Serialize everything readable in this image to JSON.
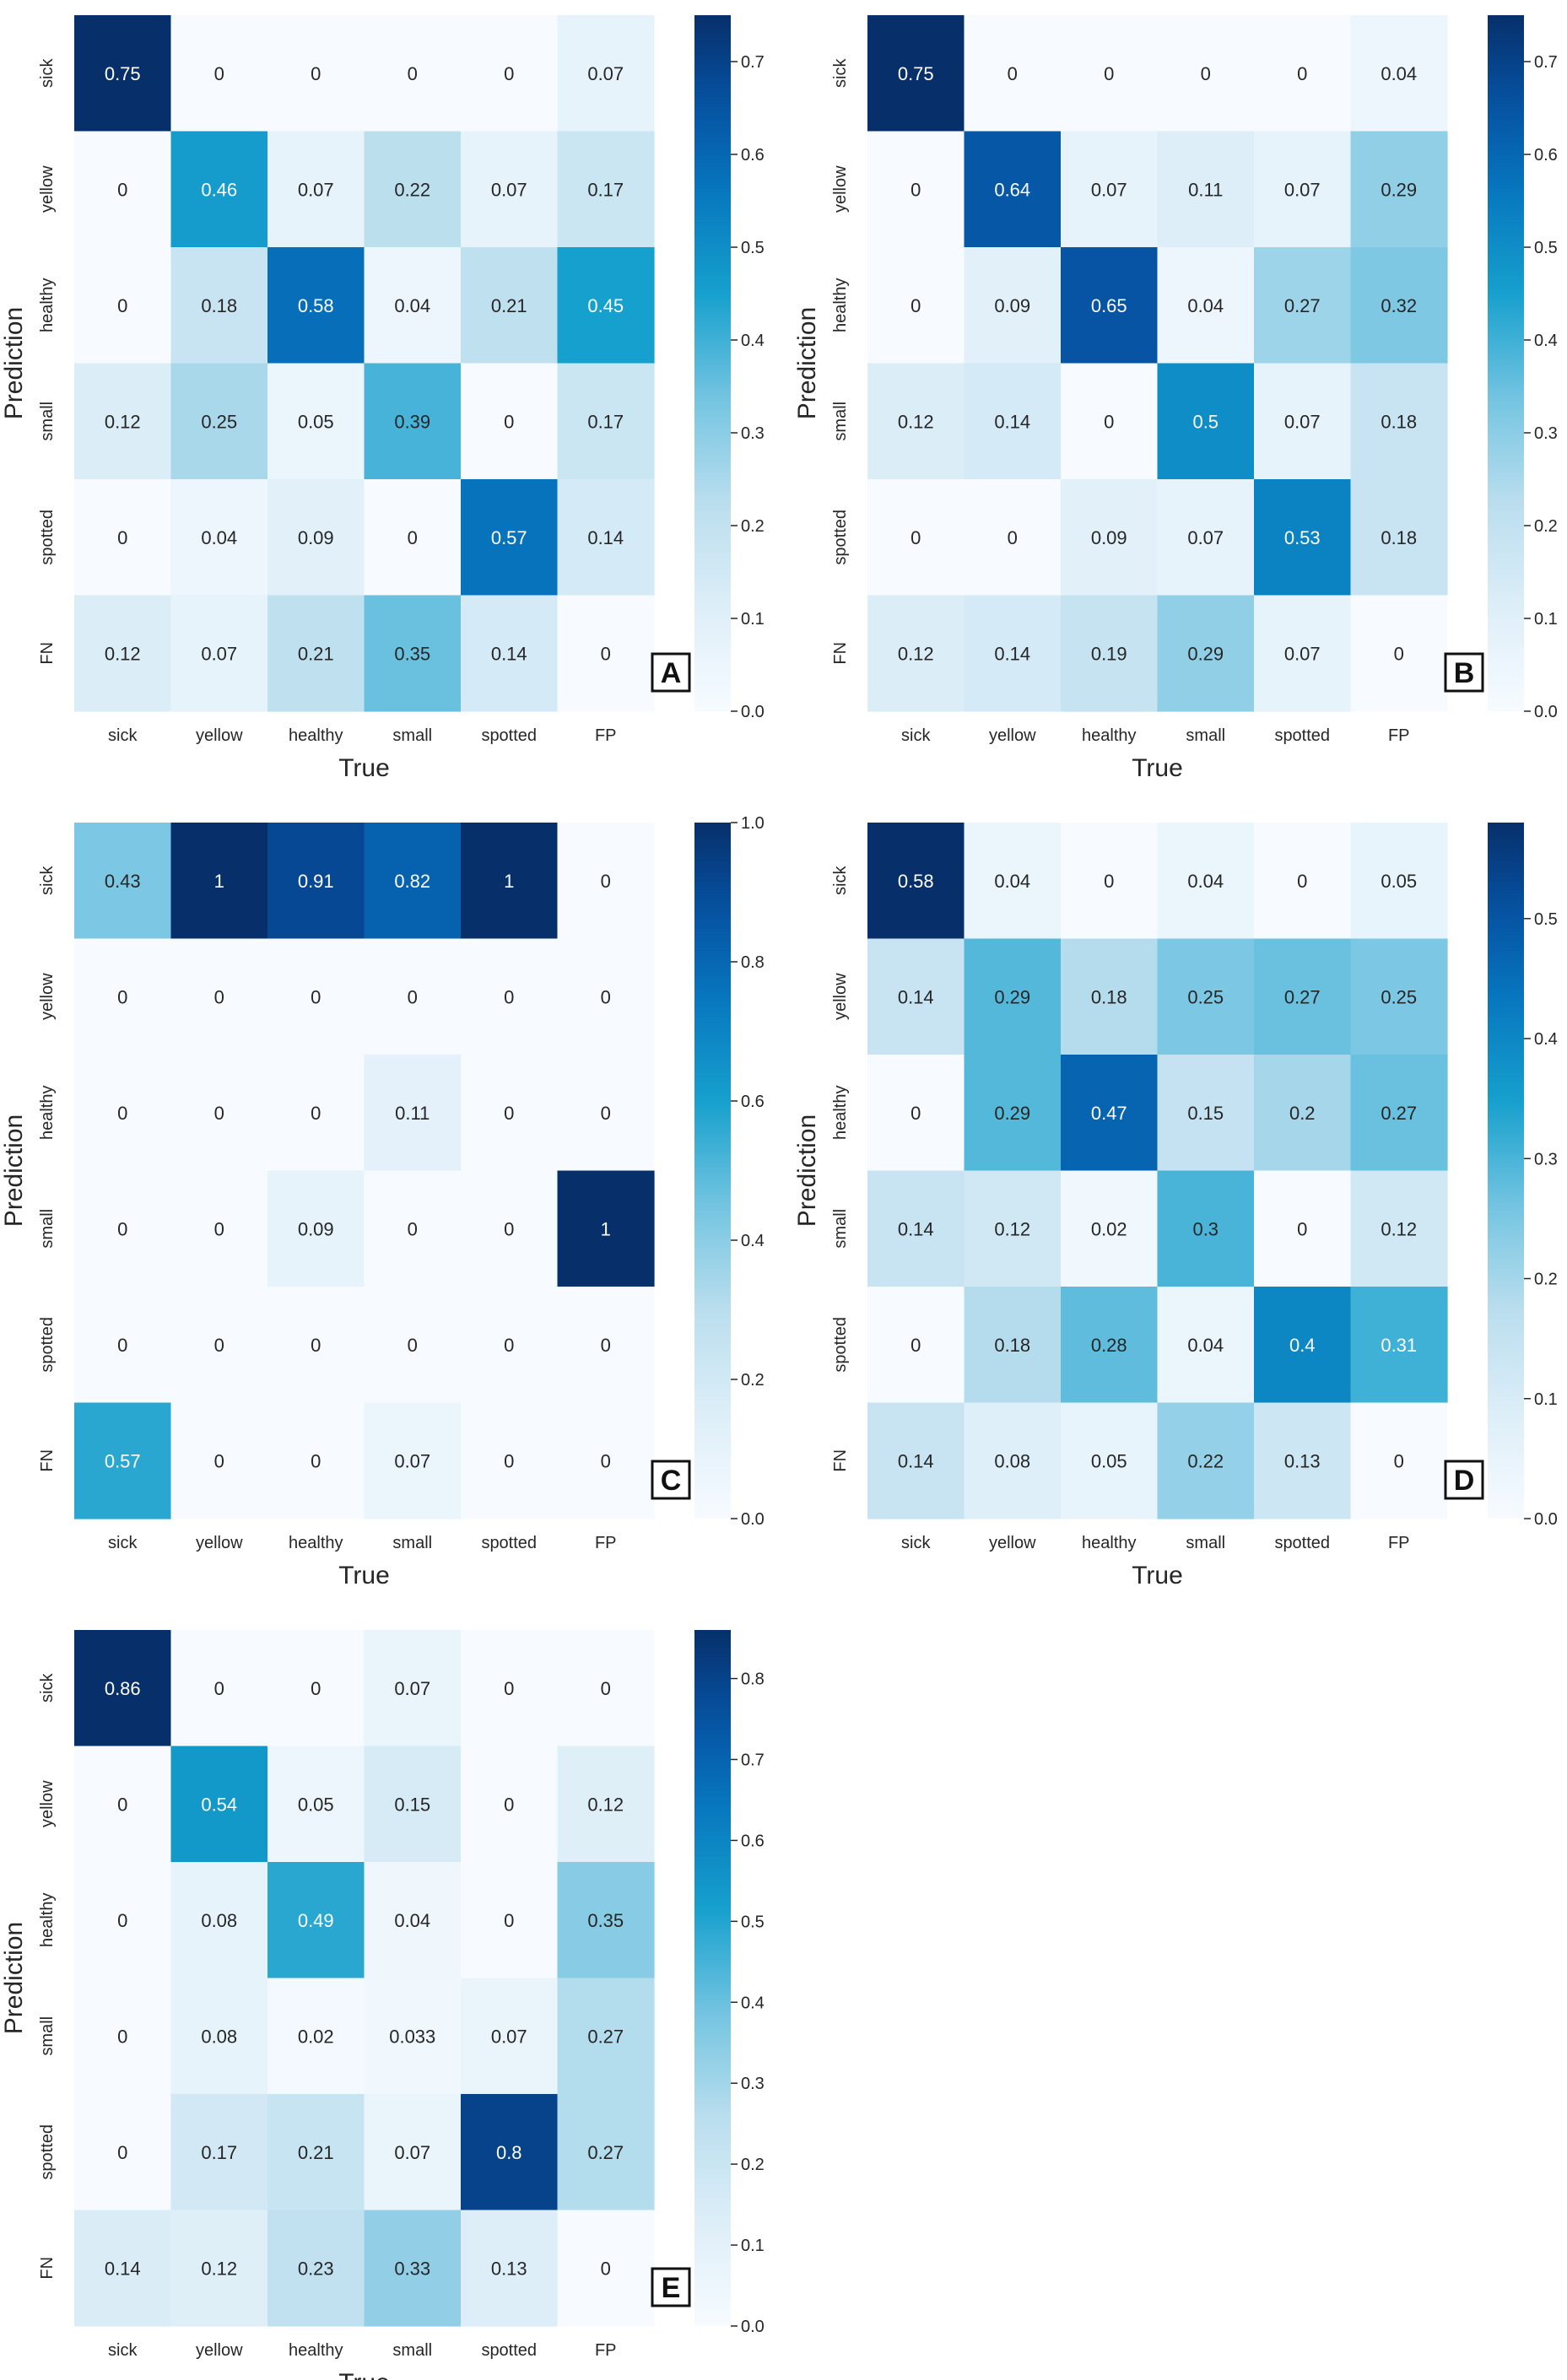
{
  "figure": {
    "xlabel": "True",
    "ylabel": "Prediction",
    "colormap": "Blues",
    "colors": {
      "low": "#f7fbff",
      "mid": "#1a9bcb",
      "high": "#08306b",
      "text_dark": "#262626",
      "text_light": "#ffffff"
    }
  },
  "chart_data": [
    {
      "type": "heatmap",
      "panel": "A",
      "categories_x": [
        "sick",
        "yellow",
        "healthy",
        "small",
        "spotted",
        "FP"
      ],
      "categories_y": [
        "sick",
        "yellow",
        "healthy",
        "small",
        "spotted",
        "FN"
      ],
      "xlabel": "True",
      "ylabel": "Prediction",
      "vmin": 0,
      "vmax": 0.75,
      "colorbar_ticks": [
        0.0,
        0.1,
        0.2,
        0.3,
        0.4,
        0.5,
        0.6,
        0.7
      ],
      "colorbar_tick_labels": [
        "0.0",
        "0.1",
        "0.2",
        "0.3",
        "0.4",
        "0.5",
        "0.6",
        "0.7"
      ],
      "cells": [
        [
          "0.75",
          "0",
          "0",
          "0",
          "0",
          "0.07"
        ],
        [
          "0",
          "0.46",
          "0.07",
          "0.22",
          "0.07",
          "0.17"
        ],
        [
          "0",
          "0.18",
          "0.58",
          "0.04",
          "0.21",
          "0.45"
        ],
        [
          "0.12",
          "0.25",
          "0.05",
          "0.39",
          "0",
          "0.17"
        ],
        [
          "0",
          "0.04",
          "0.09",
          "0",
          "0.57",
          "0.14"
        ],
        [
          "0.12",
          "0.07",
          "0.21",
          "0.35",
          "0.14",
          "0"
        ]
      ]
    },
    {
      "type": "heatmap",
      "panel": "B",
      "categories_x": [
        "sick",
        "yellow",
        "healthy",
        "small",
        "spotted",
        "FP"
      ],
      "categories_y": [
        "sick",
        "yellow",
        "healthy",
        "small",
        "spotted",
        "FN"
      ],
      "xlabel": "True",
      "ylabel": "Prediction",
      "vmin": 0,
      "vmax": 0.75,
      "colorbar_ticks": [
        0.0,
        0.1,
        0.2,
        0.3,
        0.4,
        0.5,
        0.6,
        0.7
      ],
      "colorbar_tick_labels": [
        "0.0",
        "0.1",
        "0.2",
        "0.3",
        "0.4",
        "0.5",
        "0.6",
        "0.7"
      ],
      "cells": [
        [
          "0.75",
          "0",
          "0",
          "0",
          "0",
          "0.04"
        ],
        [
          "0",
          "0.64",
          "0.07",
          "0.11",
          "0.07",
          "0.29"
        ],
        [
          "0",
          "0.09",
          "0.65",
          "0.04",
          "0.27",
          "0.32"
        ],
        [
          "0.12",
          "0.14",
          "0",
          "0.5",
          "0.07",
          "0.18"
        ],
        [
          "0",
          "0",
          "0.09",
          "0.07",
          "0.53",
          "0.18"
        ],
        [
          "0.12",
          "0.14",
          "0.19",
          "0.29",
          "0.07",
          "0"
        ]
      ]
    },
    {
      "type": "heatmap",
      "panel": "C",
      "categories_x": [
        "sick",
        "yellow",
        "healthy",
        "small",
        "spotted",
        "FP"
      ],
      "categories_y": [
        "sick",
        "yellow",
        "healthy",
        "small",
        "spotted",
        "FN"
      ],
      "xlabel": "True",
      "ylabel": "Prediction",
      "vmin": 0,
      "vmax": 1.0,
      "colorbar_ticks": [
        0.0,
        0.2,
        0.4,
        0.6,
        0.8,
        1.0
      ],
      "colorbar_tick_labels": [
        "0.0",
        "0.2",
        "0.4",
        "0.6",
        "0.8",
        "1.0"
      ],
      "cells": [
        [
          "0.43",
          "1",
          "0.91",
          "0.82",
          "1",
          "0"
        ],
        [
          "0",
          "0",
          "0",
          "0",
          "0",
          "0"
        ],
        [
          "0",
          "0",
          "0",
          "0.11",
          "0",
          "0"
        ],
        [
          "0",
          "0",
          "0.09",
          "0",
          "0",
          "1"
        ],
        [
          "0",
          "0",
          "0",
          "0",
          "0",
          "0"
        ],
        [
          "0.57",
          "0",
          "0",
          "0.07",
          "0",
          "0"
        ]
      ]
    },
    {
      "type": "heatmap",
      "panel": "D",
      "categories_x": [
        "sick",
        "yellow",
        "healthy",
        "small",
        "spotted",
        "FP"
      ],
      "categories_y": [
        "sick",
        "yellow",
        "healthy",
        "small",
        "spotted",
        "FN"
      ],
      "xlabel": "True",
      "ylabel": "Prediction",
      "vmin": 0,
      "vmax": 0.58,
      "colorbar_ticks": [
        0.0,
        0.1,
        0.2,
        0.3,
        0.4,
        0.5
      ],
      "colorbar_tick_labels": [
        "0.0",
        "0.1",
        "0.2",
        "0.3",
        "0.4",
        "0.5"
      ],
      "cells": [
        [
          "0.58",
          "0.04",
          "0",
          "0.04",
          "0",
          "0.05"
        ],
        [
          "0.14",
          "0.29",
          "0.18",
          "0.25",
          "0.27",
          "0.25"
        ],
        [
          "0",
          "0.29",
          "0.47",
          "0.15",
          "0.2",
          "0.27"
        ],
        [
          "0.14",
          "0.12",
          "0.02",
          "0.3",
          "0",
          "0.12"
        ],
        [
          "0",
          "0.18",
          "0.28",
          "0.04",
          "0.4",
          "0.31"
        ],
        [
          "0.14",
          "0.08",
          "0.05",
          "0.22",
          "0.13",
          "0"
        ]
      ]
    },
    {
      "type": "heatmap",
      "panel": "E",
      "categories_x": [
        "sick",
        "yellow",
        "healthy",
        "small",
        "spotted",
        "FP"
      ],
      "categories_y": [
        "sick",
        "yellow",
        "healthy",
        "small",
        "spotted",
        "FN"
      ],
      "xlabel": "True",
      "ylabel": "Prediction",
      "vmin": 0,
      "vmax": 0.86,
      "colorbar_ticks": [
        0.0,
        0.1,
        0.2,
        0.3,
        0.4,
        0.5,
        0.6,
        0.7,
        0.8
      ],
      "colorbar_tick_labels": [
        "0.0",
        "0.1",
        "0.2",
        "0.3",
        "0.4",
        "0.5",
        "0.6",
        "0.7",
        "0.8"
      ],
      "cells": [
        [
          "0.86",
          "0",
          "0",
          "0.07",
          "0",
          "0"
        ],
        [
          "0",
          "0.54",
          "0.05",
          "0.15",
          "0",
          "0.12"
        ],
        [
          "0",
          "0.08",
          "0.49",
          "0.04",
          "0",
          "0.35"
        ],
        [
          "0",
          "0.08",
          "0.02",
          "0.033",
          "0.07",
          "0.27"
        ],
        [
          "0",
          "0.17",
          "0.21",
          "0.07",
          "0.8",
          "0.27"
        ],
        [
          "0.14",
          "0.12",
          "0.23",
          "0.33",
          "0.13",
          "0"
        ]
      ]
    }
  ]
}
